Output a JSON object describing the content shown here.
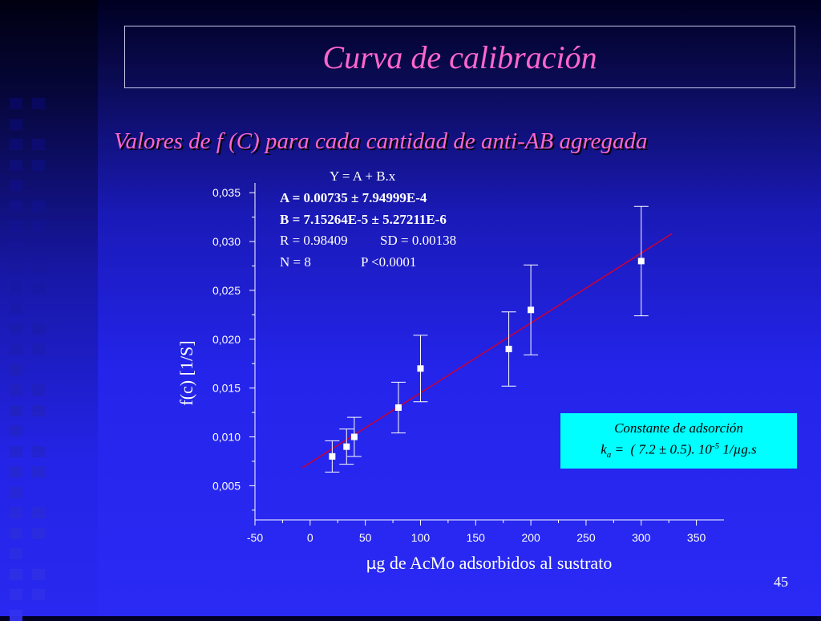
{
  "slide": {
    "title": "Curva de calibración",
    "subtitle": "Valores de f (C) para cada cantidad de anti-AB agregada",
    "page_number": "45"
  },
  "fit_box": {
    "equation": "Y = A + B.x",
    "A": "A = 0.00735 ± 7.94999E-4",
    "B": "B = 7.15264E-5 ± 5.27211E-6",
    "R_label": "R = 0.98409",
    "SD_label": "SD = 0.00138",
    "N_label": "N = 8",
    "P_label": "P <0.0001"
  },
  "constant_box": {
    "title": "Constante de adsorción",
    "k_symbol": "k",
    "k_subscript": "a",
    "equals": "=",
    "value_text": "( 7.2  ± 0.5). 10",
    "exponent": "-5",
    "unit_pre": "1/",
    "unit_mu": "µ",
    "unit_post": "g.s"
  },
  "chart_data": {
    "type": "scatter",
    "xlabel_mu": "µ",
    "xlabel": "g de AcMo adsorbidos al sustrato",
    "ylabel": "f(c) [1/S]",
    "xlim": [
      -50,
      375
    ],
    "ylim": [
      0.0015,
      0.036
    ],
    "x_ticks": [
      "-50",
      "0",
      "50",
      "100",
      "150",
      "200",
      "250",
      "300",
      "350"
    ],
    "x_tick_values": [
      -50,
      0,
      50,
      100,
      150,
      200,
      250,
      300,
      350
    ],
    "y_ticks": [
      "0,005",
      "0,010",
      "0,015",
      "0,020",
      "0,025",
      "0,030",
      "0,035"
    ],
    "y_tick_values": [
      0.005,
      0.01,
      0.015,
      0.02,
      0.025,
      0.03,
      0.035
    ],
    "points": [
      {
        "x": 20,
        "y": 0.008,
        "err": 0.0016
      },
      {
        "x": 33,
        "y": 0.009,
        "err": 0.0018
      },
      {
        "x": 40,
        "y": 0.01,
        "err": 0.002
      },
      {
        "x": 80,
        "y": 0.013,
        "err": 0.0026
      },
      {
        "x": 100,
        "y": 0.017,
        "err": 0.0034
      },
      {
        "x": 180,
        "y": 0.019,
        "err": 0.0038
      },
      {
        "x": 200,
        "y": 0.023,
        "err": 0.0046
      },
      {
        "x": 300,
        "y": 0.028,
        "err": 0.0056
      }
    ],
    "fit_line": {
      "intercept": 0.00735,
      "slope": 7.15264e-05,
      "x_start": -7,
      "x_end": 328
    },
    "colors": {
      "points": "#ffffff",
      "fit_line": "#cc0033",
      "axes": "#ffffff"
    }
  }
}
